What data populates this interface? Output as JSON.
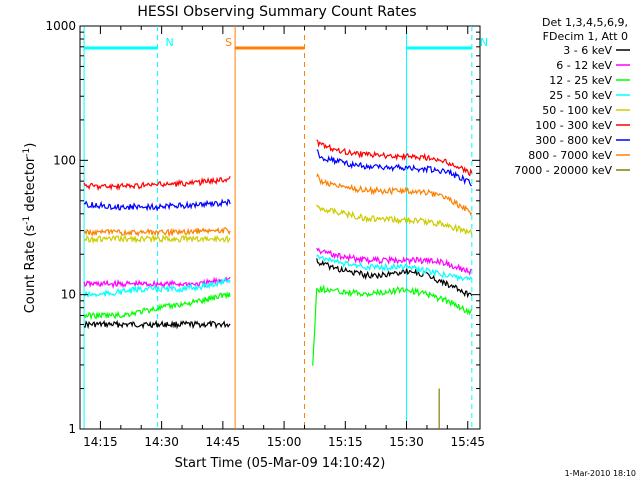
{
  "chart_data": {
    "type": "line",
    "title": "HESSI Observing Summary Count Rates",
    "xlabel": "Start Time (05-Mar-09 14:10:42)",
    "ylabel_main": "Count Rate (s",
    "ylabel_sup1": "-1",
    "ylabel_mid": " detector",
    "ylabel_sup2": "-1",
    "ylabel_end": ")",
    "y_scale": "log",
    "ylim": [
      1,
      1000
    ],
    "xlim": [
      "14:10",
      "15:48"
    ],
    "x_ticks": [
      "14:15",
      "14:30",
      "14:45",
      "15:00",
      "15:15",
      "15:30",
      "15:45"
    ],
    "y_ticks": [
      {
        "value": 1,
        "label": "1"
      },
      {
        "value": 10,
        "label": "10"
      },
      {
        "value": 100,
        "label": "100"
      },
      {
        "value": 1000,
        "label": "1000"
      }
    ],
    "legend_header": [
      "Det 1,3,4,5,6,9,",
      "FDecim 1, Att 0"
    ],
    "legend_position": "outside-right",
    "series": [
      {
        "name": "3 - 6 keV",
        "color": "#000000",
        "segments": [
          {
            "times": [
              "14:11",
              "14:15",
              "14:20",
              "14:25",
              "14:30",
              "14:35",
              "14:40",
              "14:45",
              "14:47"
            ],
            "values": [
              6,
              6,
              6,
              6,
              6,
              6,
              6,
              6,
              6
            ]
          },
          {
            "times": [
              "15:08",
              "15:09",
              "15:15",
              "15:20",
              "15:25",
              "15:30",
              "15:35",
              "15:40",
              "15:45",
              "15:46"
            ],
            "values": [
              18,
              17,
              15,
              14,
              14,
              15,
              14,
              12,
              10,
              10
            ]
          }
        ]
      },
      {
        "name": "6 - 12 keV",
        "color": "#ff00ff",
        "segments": [
          {
            "times": [
              "14:11",
              "14:15",
              "14:20",
              "14:25",
              "14:30",
              "14:35",
              "14:40",
              "14:45",
              "14:47"
            ],
            "values": [
              12,
              12,
              12,
              12,
              12,
              12,
              12,
              13,
              13
            ]
          },
          {
            "times": [
              "15:08",
              "15:09",
              "15:15",
              "15:20",
              "15:25",
              "15:30",
              "15:35",
              "15:40",
              "15:45",
              "15:46"
            ],
            "values": [
              22,
              21,
              19,
              18,
              18,
              18,
              18,
              17,
              15,
              15
            ]
          }
        ]
      },
      {
        "name": "12 - 25 keV",
        "color": "#00ff00",
        "segments": [
          {
            "times": [
              "14:11",
              "14:15",
              "14:20",
              "14:25",
              "14:30",
              "14:35",
              "14:40",
              "14:45",
              "14:47"
            ],
            "values": [
              7,
              7,
              7,
              7.5,
              8,
              8.5,
              9,
              10,
              10
            ]
          },
          {
            "times": [
              "15:07",
              "15:08",
              "15:09",
              "15:15",
              "15:20",
              "15:25",
              "15:30",
              "15:35",
              "15:40",
              "15:45",
              "15:46"
            ],
            "values": [
              3,
              11,
              11,
              10.5,
              10,
              10.5,
              11,
              10,
              9,
              7.5,
              7.5
            ]
          }
        ]
      },
      {
        "name": "25 - 50 keV",
        "color": "#00ffff",
        "segments": [
          {
            "times": [
              "14:11",
              "14:15",
              "14:20",
              "14:25",
              "14:30",
              "14:35",
              "14:40",
              "14:45",
              "14:47"
            ],
            "values": [
              10,
              10,
              10.5,
              11,
              11,
              11,
              11.5,
              12.5,
              13
            ]
          },
          {
            "times": [
              "15:08",
              "15:09",
              "15:15",
              "15:20",
              "15:25",
              "15:30",
              "15:35",
              "15:40",
              "15:45",
              "15:46"
            ],
            "values": [
              20,
              19,
              17,
              16,
              16,
              16,
              15,
              14,
              13,
              13
            ]
          }
        ]
      },
      {
        "name": "50 - 100 keV",
        "color": "#cccc00",
        "segments": [
          {
            "times": [
              "14:11",
              "14:15",
              "14:20",
              "14:25",
              "14:30",
              "14:35",
              "14:40",
              "14:45",
              "14:47"
            ],
            "values": [
              26,
              26,
              26,
              26,
              26,
              26,
              26,
              26,
              26
            ]
          },
          {
            "times": [
              "15:08",
              "15:09",
              "15:15",
              "15:20",
              "15:25",
              "15:30",
              "15:35",
              "15:40",
              "15:45",
              "15:46"
            ],
            "values": [
              45,
              44,
              40,
              37,
              36,
              36,
              35,
              33,
              29,
              29
            ]
          }
        ]
      },
      {
        "name": "100 - 300 keV",
        "color": "#ff0000",
        "segments": [
          {
            "times": [
              "14:11",
              "14:15",
              "14:20",
              "14:25",
              "14:30",
              "14:35",
              "14:40",
              "14:45",
              "14:47"
            ],
            "values": [
              65,
              64,
              64,
              65,
              66,
              67,
              69,
              72,
              73
            ]
          },
          {
            "times": [
              "15:08",
              "15:09",
              "15:15",
              "15:20",
              "15:25",
              "15:30",
              "15:35",
              "15:40",
              "15:45",
              "15:46"
            ],
            "values": [
              140,
              130,
              115,
              110,
              108,
              108,
              105,
              97,
              82,
              80
            ]
          }
        ]
      },
      {
        "name": "300 - 800 keV",
        "color": "#0000ff",
        "segments": [
          {
            "times": [
              "14:11",
              "14:15",
              "14:20",
              "14:25",
              "14:30",
              "14:35",
              "14:40",
              "14:45",
              "14:47"
            ],
            "values": [
              47,
              46,
              45,
              45,
              45,
              46,
              47,
              48,
              49
            ]
          },
          {
            "times": [
              "15:08",
              "15:09",
              "15:15",
              "15:20",
              "15:25",
              "15:30",
              "15:35",
              "15:40",
              "15:45",
              "15:46"
            ],
            "values": [
              120,
              105,
              95,
              90,
              88,
              88,
              86,
              82,
              70,
              68
            ]
          }
        ]
      },
      {
        "name": "800 - 7000 keV",
        "color": "#ff8000",
        "segments": [
          {
            "times": [
              "14:11",
              "14:15",
              "14:20",
              "14:25",
              "14:30",
              "14:35",
              "14:40",
              "14:45",
              "14:47"
            ],
            "values": [
              29,
              29,
              29,
              29,
              29,
              29,
              30,
              30,
              30
            ]
          },
          {
            "times": [
              "15:08",
              "15:09",
              "15:15",
              "15:20",
              "15:25",
              "15:30",
              "15:35",
              "15:40",
              "15:45",
              "15:46"
            ],
            "values": [
              78,
              70,
              63,
              60,
              59,
              59,
              58,
              53,
              42,
              41
            ]
          }
        ]
      },
      {
        "name": "7000 - 20000 keV",
        "color": "#808000",
        "segments": [
          {
            "times": [
              "15:38",
              "15:38"
            ],
            "values": [
              1,
              2
            ]
          }
        ]
      }
    ],
    "annotations": [
      {
        "label": "N",
        "color": "#00ffff",
        "bar_start": "14:11",
        "bar_end": "14:29",
        "line_solid": "14:11",
        "line_dashed": "14:29"
      },
      {
        "label": "N",
        "color": "#00ffff",
        "bar_start": "15:30",
        "bar_end": "15:46",
        "line_solid": "15:30",
        "line_dashed": "15:46"
      },
      {
        "label": "S",
        "color": "#ff8000",
        "bar_start": "14:48",
        "bar_end": "15:05",
        "line_solid": "14:48",
        "line_dashed": "15:05"
      }
    ],
    "footer_timestamp": "1-Mar-2010 18:10"
  }
}
